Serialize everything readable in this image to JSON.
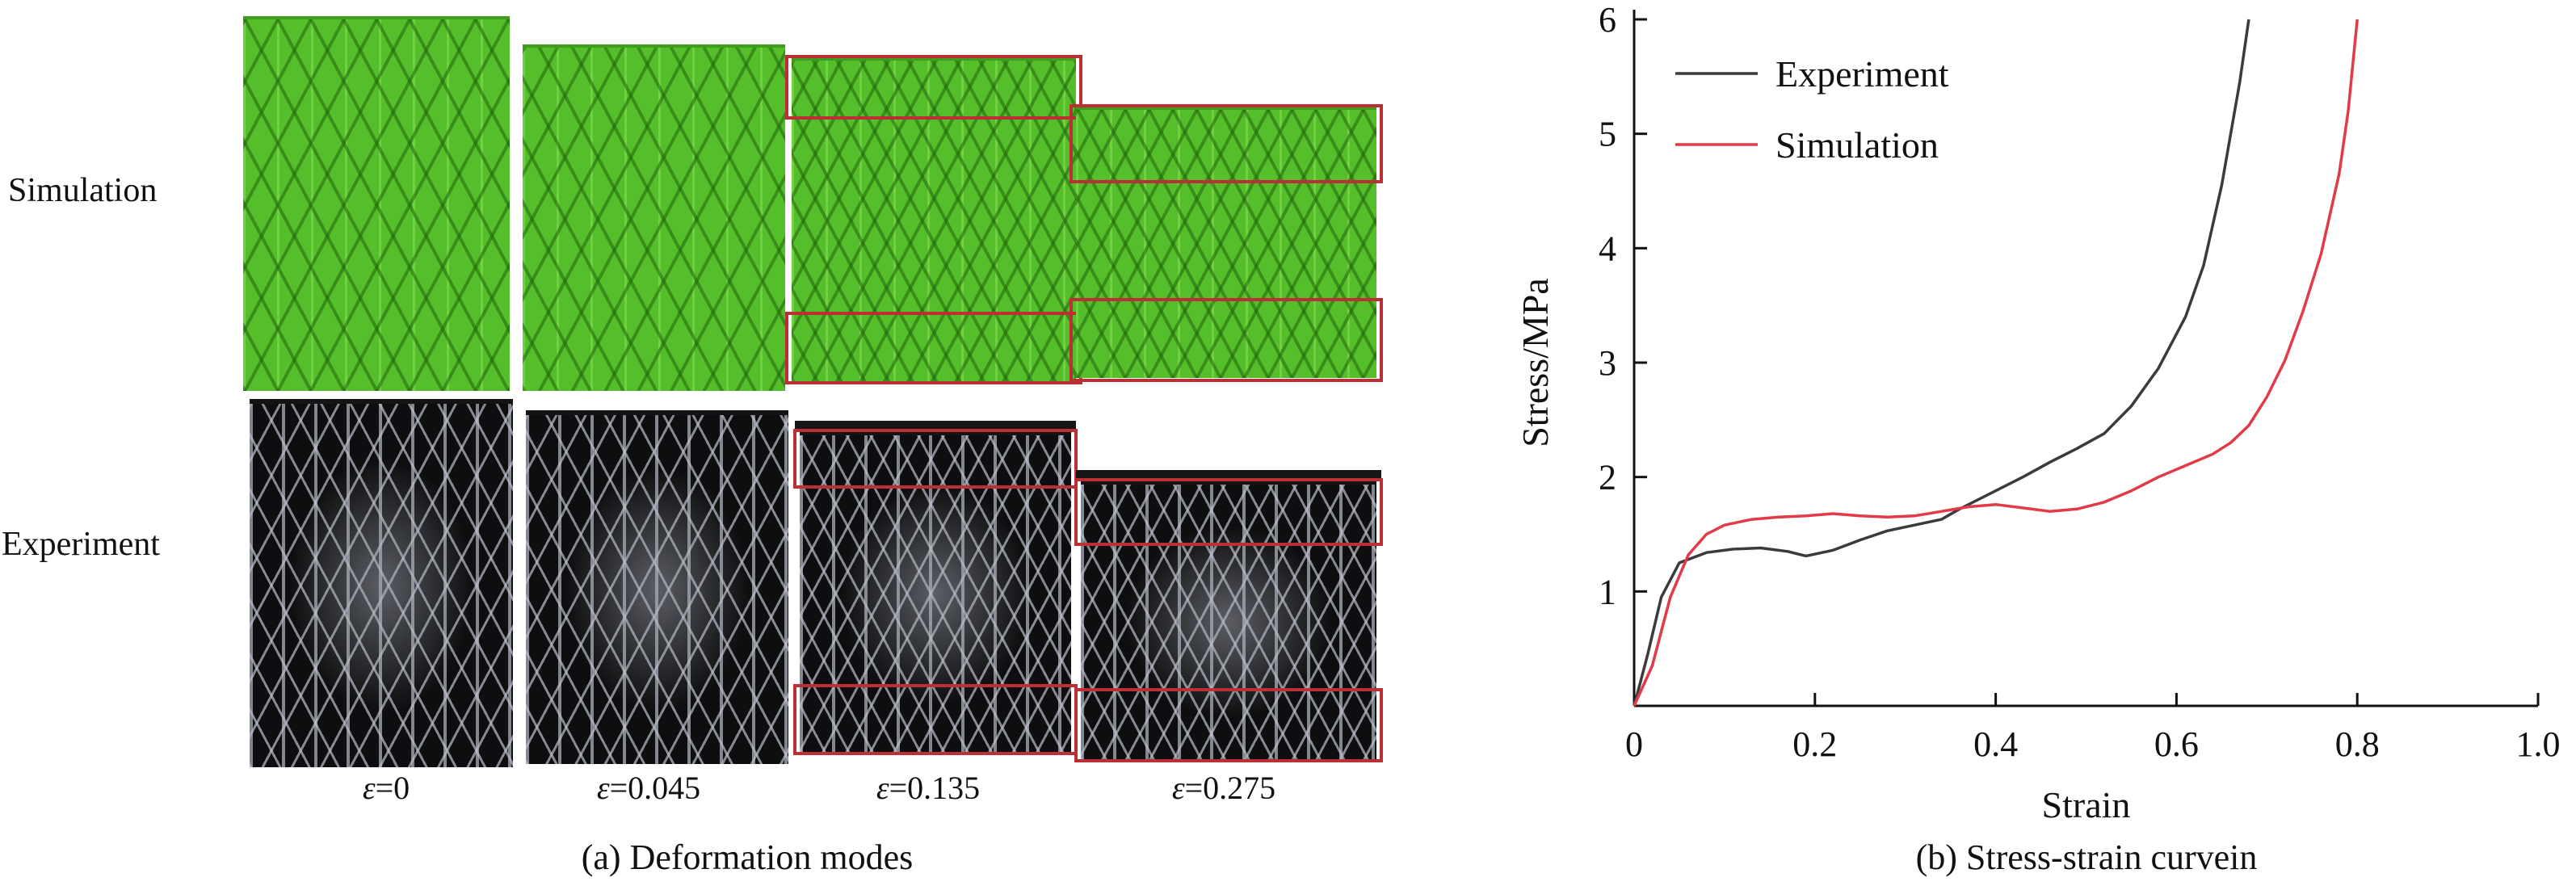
{
  "panel_a": {
    "caption": "(a) Deformation modes",
    "rows": [
      {
        "label": "Simulation"
      },
      {
        "label": "Experiment"
      }
    ],
    "strain_labels": [
      {
        "sym": "ε",
        "val": "=0"
      },
      {
        "sym": "ε",
        "val": "=0.045"
      },
      {
        "sym": "ε",
        "val": "=0.135"
      },
      {
        "sym": "ε",
        "val": "=0.275"
      }
    ],
    "colors": {
      "simulation_green": "#54be2b",
      "experiment_dark": "#0e0e10",
      "highlight_red": "#bb2f35"
    }
  },
  "panel_b": {
    "caption": "(b) Stress-strain curvein"
  },
  "chart_data": {
    "type": "line",
    "title": "",
    "xlabel": "Strain",
    "ylabel": "Stress/MPa",
    "xlim": [
      0,
      1.0
    ],
    "ylim": [
      0,
      6
    ],
    "grid": false,
    "legend_position": "top-left",
    "xticks": [
      0,
      0.2,
      0.4,
      0.6,
      0.8,
      1.0
    ],
    "xtick_labels": [
      "0",
      "0.2",
      "0.4",
      "0.6",
      "0.8",
      "1.0"
    ],
    "yticks": [
      1,
      2,
      3,
      4,
      5,
      6
    ],
    "ytick_labels": [
      "1",
      "2",
      "3",
      "4",
      "5",
      "6"
    ],
    "series": [
      {
        "name": "Experiment",
        "color": "#3b3b3b",
        "points": [
          [
            0,
            0
          ],
          [
            0.015,
            0.45
          ],
          [
            0.03,
            0.95
          ],
          [
            0.05,
            1.25
          ],
          [
            0.08,
            1.34
          ],
          [
            0.11,
            1.37
          ],
          [
            0.14,
            1.38
          ],
          [
            0.17,
            1.35
          ],
          [
            0.19,
            1.31
          ],
          [
            0.22,
            1.36
          ],
          [
            0.25,
            1.45
          ],
          [
            0.28,
            1.53
          ],
          [
            0.31,
            1.58
          ],
          [
            0.34,
            1.63
          ],
          [
            0.36,
            1.72
          ],
          [
            0.38,
            1.8
          ],
          [
            0.4,
            1.88
          ],
          [
            0.43,
            2.0
          ],
          [
            0.46,
            2.13
          ],
          [
            0.49,
            2.25
          ],
          [
            0.52,
            2.38
          ],
          [
            0.55,
            2.62
          ],
          [
            0.58,
            2.95
          ],
          [
            0.61,
            3.4
          ],
          [
            0.63,
            3.85
          ],
          [
            0.65,
            4.55
          ],
          [
            0.67,
            5.45
          ],
          [
            0.68,
            6.0
          ]
        ]
      },
      {
        "name": "Simulation",
        "color": "#e23b47",
        "points": [
          [
            0,
            0
          ],
          [
            0.02,
            0.35
          ],
          [
            0.04,
            0.95
          ],
          [
            0.06,
            1.32
          ],
          [
            0.08,
            1.5
          ],
          [
            0.1,
            1.58
          ],
          [
            0.13,
            1.63
          ],
          [
            0.16,
            1.65
          ],
          [
            0.19,
            1.66
          ],
          [
            0.22,
            1.68
          ],
          [
            0.25,
            1.66
          ],
          [
            0.28,
            1.65
          ],
          [
            0.31,
            1.66
          ],
          [
            0.34,
            1.7
          ],
          [
            0.37,
            1.74
          ],
          [
            0.4,
            1.76
          ],
          [
            0.43,
            1.73
          ],
          [
            0.46,
            1.7
          ],
          [
            0.49,
            1.72
          ],
          [
            0.52,
            1.78
          ],
          [
            0.55,
            1.88
          ],
          [
            0.58,
            2.0
          ],
          [
            0.61,
            2.1
          ],
          [
            0.64,
            2.2
          ],
          [
            0.66,
            2.3
          ],
          [
            0.68,
            2.45
          ],
          [
            0.7,
            2.7
          ],
          [
            0.72,
            3.02
          ],
          [
            0.74,
            3.45
          ],
          [
            0.76,
            3.95
          ],
          [
            0.78,
            4.65
          ],
          [
            0.79,
            5.2
          ],
          [
            0.8,
            6.0
          ]
        ]
      }
    ]
  }
}
